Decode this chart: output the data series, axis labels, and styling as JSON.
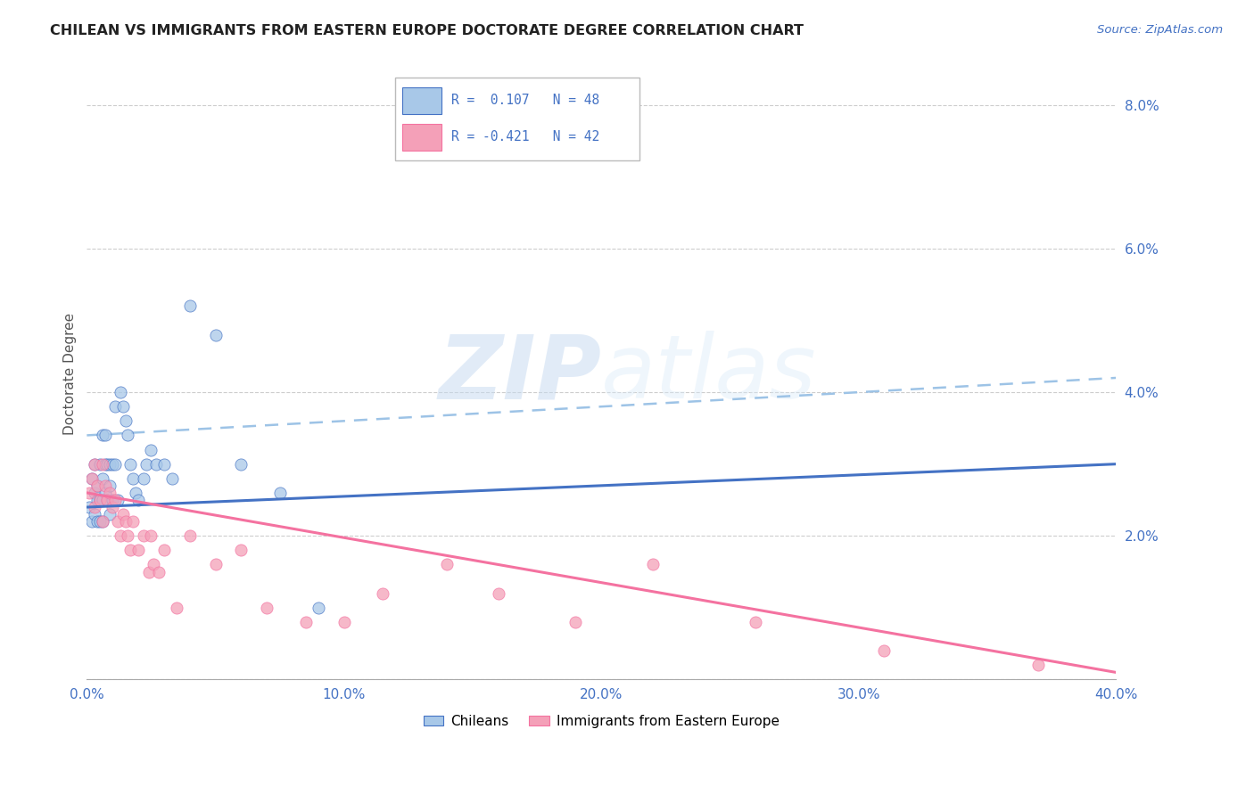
{
  "title": "CHILEAN VS IMMIGRANTS FROM EASTERN EUROPE DOCTORATE DEGREE CORRELATION CHART",
  "source": "Source: ZipAtlas.com",
  "ylabel_label": "Doctorate Degree",
  "x_min": 0.0,
  "x_max": 0.4,
  "y_min": 0.0,
  "y_max": 0.085,
  "x_ticks": [
    0.0,
    0.1,
    0.2,
    0.3,
    0.4
  ],
  "x_tick_labels": [
    "0.0%",
    "10.0%",
    "20.0%",
    "30.0%",
    "40.0%"
  ],
  "y_ticks": [
    0.0,
    0.02,
    0.04,
    0.06,
    0.08
  ],
  "y_tick_labels": [
    "",
    "2.0%",
    "4.0%",
    "6.0%",
    "8.0%"
  ],
  "color_blue": "#A8C8E8",
  "color_pink": "#F4A0B8",
  "color_blue_line": "#4472C4",
  "color_pink_line": "#F472A0",
  "color_dashed": "#9DC3E6",
  "watermark_zip": "ZIP",
  "watermark_atlas": "atlas",
  "chileans_x": [
    0.001,
    0.002,
    0.002,
    0.003,
    0.003,
    0.003,
    0.004,
    0.004,
    0.004,
    0.005,
    0.005,
    0.005,
    0.006,
    0.006,
    0.006,
    0.006,
    0.007,
    0.007,
    0.007,
    0.008,
    0.008,
    0.009,
    0.009,
    0.009,
    0.01,
    0.01,
    0.011,
    0.011,
    0.012,
    0.013,
    0.014,
    0.015,
    0.016,
    0.017,
    0.018,
    0.019,
    0.02,
    0.022,
    0.023,
    0.025,
    0.027,
    0.03,
    0.033,
    0.04,
    0.05,
    0.06,
    0.075,
    0.09
  ],
  "chileans_y": [
    0.024,
    0.022,
    0.028,
    0.023,
    0.026,
    0.03,
    0.025,
    0.027,
    0.022,
    0.03,
    0.025,
    0.022,
    0.034,
    0.028,
    0.025,
    0.022,
    0.034,
    0.03,
    0.026,
    0.03,
    0.025,
    0.03,
    0.027,
    0.023,
    0.03,
    0.025,
    0.038,
    0.03,
    0.025,
    0.04,
    0.038,
    0.036,
    0.034,
    0.03,
    0.028,
    0.026,
    0.025,
    0.028,
    0.03,
    0.032,
    0.03,
    0.03,
    0.028,
    0.052,
    0.048,
    0.03,
    0.026,
    0.01
  ],
  "immigrants_x": [
    0.001,
    0.002,
    0.003,
    0.003,
    0.004,
    0.005,
    0.006,
    0.006,
    0.007,
    0.008,
    0.009,
    0.01,
    0.011,
    0.012,
    0.013,
    0.014,
    0.015,
    0.016,
    0.017,
    0.018,
    0.02,
    0.022,
    0.024,
    0.025,
    0.026,
    0.028,
    0.03,
    0.035,
    0.04,
    0.05,
    0.06,
    0.07,
    0.085,
    0.1,
    0.115,
    0.14,
    0.16,
    0.19,
    0.22,
    0.26,
    0.31,
    0.37
  ],
  "immigrants_y": [
    0.026,
    0.028,
    0.024,
    0.03,
    0.027,
    0.025,
    0.03,
    0.022,
    0.027,
    0.025,
    0.026,
    0.024,
    0.025,
    0.022,
    0.02,
    0.023,
    0.022,
    0.02,
    0.018,
    0.022,
    0.018,
    0.02,
    0.015,
    0.02,
    0.016,
    0.015,
    0.018,
    0.01,
    0.02,
    0.016,
    0.018,
    0.01,
    0.008,
    0.008,
    0.012,
    0.016,
    0.012,
    0.008,
    0.016,
    0.008,
    0.004,
    0.002
  ],
  "chileans_line_x": [
    0.0,
    0.4
  ],
  "chileans_line_y": [
    0.024,
    0.03
  ],
  "immigrants_line_x": [
    0.0,
    0.4
  ],
  "immigrants_line_y": [
    0.026,
    0.001
  ],
  "dashed_line_x": [
    0.0,
    0.4
  ],
  "dashed_line_y": [
    0.034,
    0.042
  ]
}
